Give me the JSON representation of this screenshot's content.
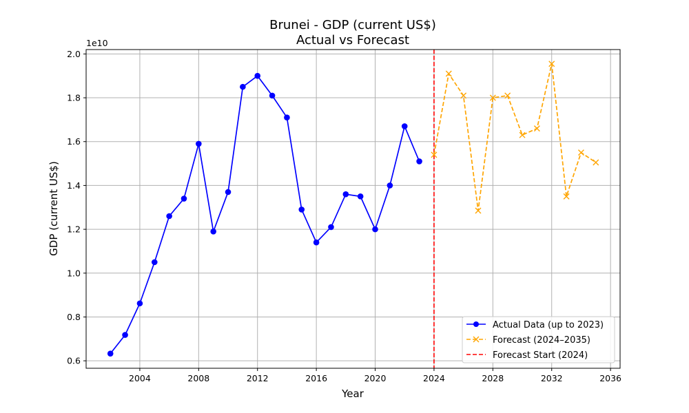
{
  "chart_data": {
    "type": "line",
    "title": "Brunei - GDP (current US$)",
    "subtitle": "Actual vs Forecast",
    "xlabel": "Year",
    "ylabel": "GDP (current US$)",
    "y_scale_label": "1e10",
    "xlim": [
      2000.35,
      2036.65
    ],
    "ylim": [
      0.566,
      2.02
    ],
    "x_ticks": [
      2004,
      2008,
      2012,
      2016,
      2020,
      2024,
      2028,
      2032,
      2036
    ],
    "y_ticks": [
      0.6,
      0.8,
      1.0,
      1.2,
      1.4,
      1.6,
      1.8,
      2.0
    ],
    "y_tick_labels": [
      "0.6",
      "0.8",
      "1.0",
      "1.2",
      "1.4",
      "1.6",
      "1.8",
      "2.0"
    ],
    "grid": true,
    "legend_position": "bottom-right",
    "series": [
      {
        "name": "Actual Data (up to 2023)",
        "color": "#0000ff",
        "style": "solid",
        "marker": "circle",
        "x": [
          2002,
          2003,
          2004,
          2005,
          2006,
          2007,
          2008,
          2009,
          2010,
          2011,
          2012,
          2013,
          2014,
          2015,
          2016,
          2017,
          2018,
          2019,
          2020,
          2021,
          2022,
          2023
        ],
        "values": [
          0.633,
          0.718,
          0.862,
          1.05,
          1.26,
          1.34,
          1.59,
          1.19,
          1.37,
          1.85,
          1.9,
          1.81,
          1.71,
          1.29,
          1.14,
          1.21,
          1.36,
          1.35,
          1.2,
          1.4,
          1.67,
          1.51
        ]
      },
      {
        "name": "Forecast (2024–2035)",
        "color": "#ffa500",
        "style": "dashed",
        "marker": "x",
        "x": [
          2024,
          2025,
          2026,
          2027,
          2028,
          2029,
          2030,
          2031,
          2032,
          2033,
          2034,
          2035
        ],
        "values": [
          1.54,
          1.91,
          1.81,
          1.285,
          1.8,
          1.81,
          1.63,
          1.66,
          1.955,
          1.35,
          1.55,
          1.505
        ]
      }
    ],
    "vline": {
      "name": "Forecast Start (2024)",
      "x": 2024,
      "color": "#ff0000",
      "style": "dashed"
    }
  }
}
